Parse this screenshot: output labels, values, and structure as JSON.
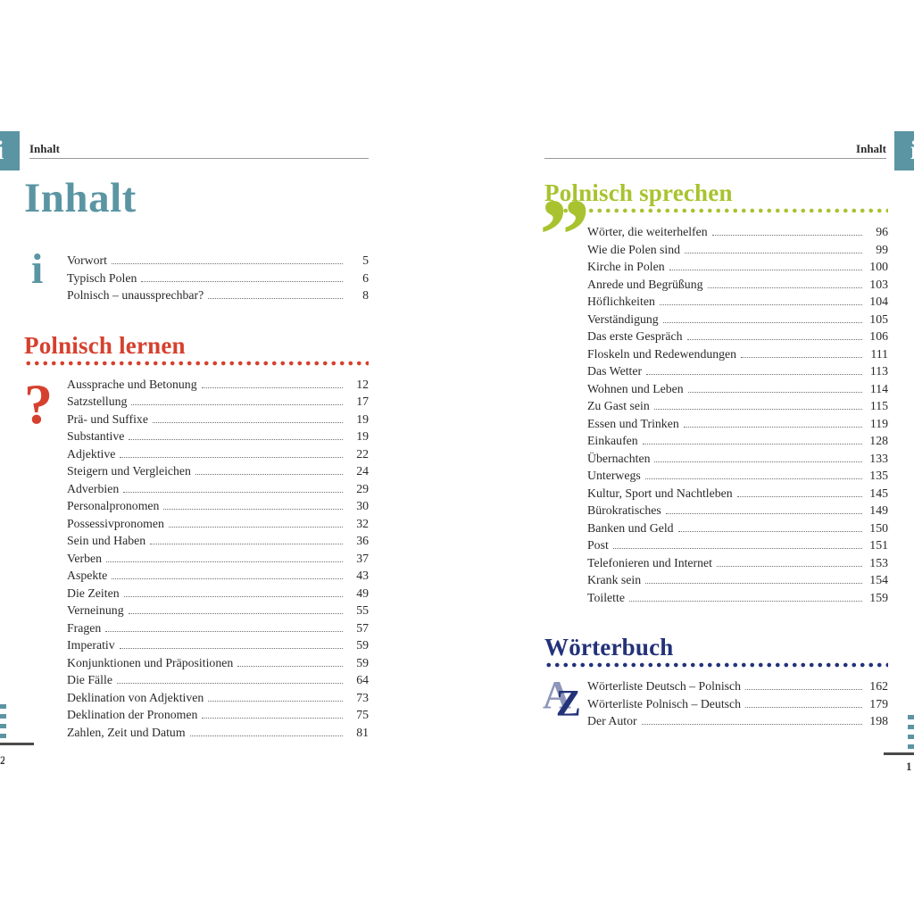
{
  "colors": {
    "teal": "#5b95a3",
    "red": "#d5412e",
    "green": "#a8c32f",
    "navy": "#233279",
    "text": "#2a2a2a"
  },
  "left_page": {
    "header_label": "Inhalt",
    "title": "Inhalt",
    "groups": [
      {
        "icon": "info-i",
        "icon_glyph": "i",
        "heading": null,
        "entries": [
          {
            "label": "Vorwort",
            "page": "5"
          },
          {
            "label": "Typisch Polen",
            "page": "6"
          },
          {
            "label": "Polnisch – unaussprechbar?",
            "page": "8"
          }
        ]
      },
      {
        "icon": "question-mark",
        "icon_glyph": "?",
        "heading": "Polnisch lernen",
        "heading_color": "#d5412e",
        "entries": [
          {
            "label": "Aussprache und Betonung",
            "page": "12"
          },
          {
            "label": "Satzstellung",
            "page": "17"
          },
          {
            "label": "Prä- und Suffixe",
            "page": "19"
          },
          {
            "label": "Substantive",
            "page": "19"
          },
          {
            "label": "Adjektive",
            "page": "22"
          },
          {
            "label": "Steigern und Vergleichen",
            "page": "24"
          },
          {
            "label": "Adverbien",
            "page": "29"
          },
          {
            "label": "Personalpronomen",
            "page": "30"
          },
          {
            "label": "Possessivpronomen",
            "page": "32"
          },
          {
            "label": "Sein und Haben",
            "page": "36"
          },
          {
            "label": "Verben",
            "page": "37"
          },
          {
            "label": "Aspekte",
            "page": "43"
          },
          {
            "label": "Die Zeiten",
            "page": "49"
          },
          {
            "label": "Verneinung",
            "page": "55"
          },
          {
            "label": "Fragen",
            "page": "57"
          },
          {
            "label": "Imperativ",
            "page": "59"
          },
          {
            "label": "Konjunktionen und Präpositionen",
            "page": "59"
          },
          {
            "label": "Die Fälle",
            "page": "64"
          },
          {
            "label": "Deklination von Adjektiven",
            "page": "73"
          },
          {
            "label": "Deklination der Pronomen",
            "page": "75"
          },
          {
            "label": "Zahlen, Zeit und Datum",
            "page": "81"
          }
        ]
      }
    ]
  },
  "right_page": {
    "header_label": "Inhalt",
    "groups": [
      {
        "icon": "quote-marks",
        "icon_glyph": "”",
        "heading": "Polnisch sprechen",
        "heading_color": "#a8c32f",
        "entries": [
          {
            "label": "Wörter, die weiterhelfen",
            "page": "96"
          },
          {
            "label": "Wie die Polen sind",
            "page": "99"
          },
          {
            "label": "Kirche in Polen",
            "page": "100"
          },
          {
            "label": "Anrede und Begrüßung",
            "page": "103"
          },
          {
            "label": "Höflichkeiten",
            "page": "104"
          },
          {
            "label": "Verständigung",
            "page": "105"
          },
          {
            "label": "Das erste Gespräch",
            "page": "106"
          },
          {
            "label": "Floskeln und Redewendungen",
            "page": "111"
          },
          {
            "label": "Das Wetter",
            "page": "113"
          },
          {
            "label": "Wohnen und Leben",
            "page": "114"
          },
          {
            "label": "Zu Gast sein",
            "page": "115"
          },
          {
            "label": "Essen und Trinken",
            "page": "119"
          },
          {
            "label": "Einkaufen",
            "page": "128"
          },
          {
            "label": "Übernachten",
            "page": "133"
          },
          {
            "label": "Unterwegs",
            "page": "135"
          },
          {
            "label": "Kultur, Sport und Nachtleben",
            "page": "145"
          },
          {
            "label": "Bürokratisches",
            "page": "149"
          },
          {
            "label": "Banken und Geld",
            "page": "150"
          },
          {
            "label": "Post",
            "page": "151"
          },
          {
            "label": "Telefonieren und Internet",
            "page": "153"
          },
          {
            "label": "Krank sein",
            "page": "154"
          },
          {
            "label": "Toilette",
            "page": "159"
          }
        ]
      },
      {
        "icon": "az-letters",
        "icon_glyphs": [
          "A",
          "Z"
        ],
        "heading": "Wörterbuch",
        "heading_color": "#233279",
        "entries": [
          {
            "label": "Wörterliste Deutsch – Polnisch",
            "page": "162"
          },
          {
            "label": "Wörterliste Polnisch – Deutsch",
            "page": "179"
          },
          {
            "label": "Der Autor",
            "page": "198"
          }
        ]
      }
    ]
  },
  "edge_markers": {
    "left": {
      "page_number": "2"
    },
    "right": {
      "page_number": "1"
    }
  }
}
